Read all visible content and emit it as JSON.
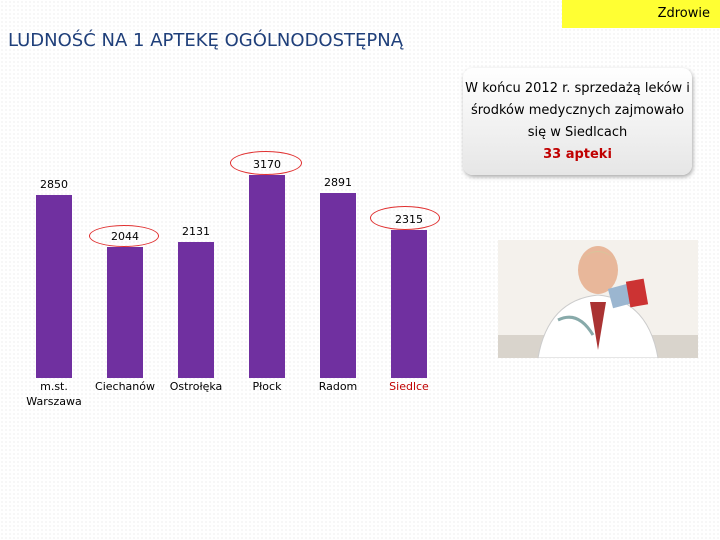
{
  "header": {
    "section": "Zdrowie",
    "title": "LUDNOŚĆ NA 1 APTEKĘ OGÓLNODOSTĘPNĄ"
  },
  "callout": {
    "text": "W końcu 2012 r. sprzedażą leków i środków medycznych zajmowało się w Siedlcach",
    "highlight": "33 apteki"
  },
  "chart_data": {
    "type": "bar",
    "categories": [
      "m.st. Warszawa",
      "Ciechanów",
      "Ostrołęka",
      "Płock",
      "Radom",
      "Siedlce"
    ],
    "values": [
      2850,
      2044,
      2131,
      3170,
      2891,
      2315
    ],
    "color": "#7030a0",
    "category_label_colors": [
      "#000000",
      "#000000",
      "#000000",
      "#000000",
      "#000000",
      "#c00000"
    ]
  }
}
